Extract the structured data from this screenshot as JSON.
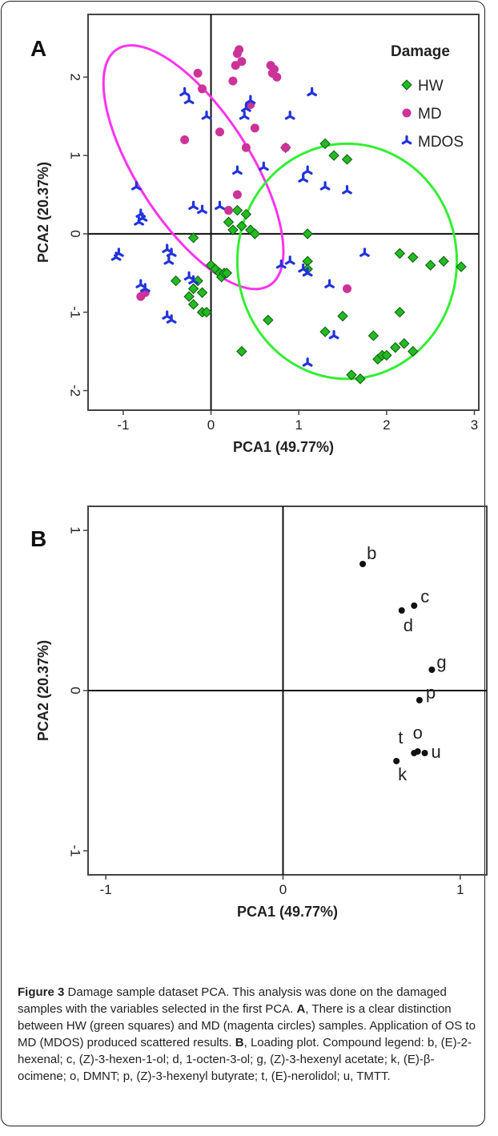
{
  "chart_data": [
    {
      "panel": "A",
      "type": "scatter",
      "xlabel": "PCA1 (49.77%)",
      "ylabel": "PCA2 (20.37%)",
      "xlim": [
        -1.4,
        3.05
      ],
      "ylim": [
        -2.25,
        2.8
      ],
      "xticks": [
        -1,
        0,
        1,
        2,
        3
      ],
      "yticks": [
        -2,
        -1,
        0,
        1,
        2
      ],
      "legend_title": "Damage",
      "legend_position": "top-right",
      "series": [
        {
          "name": "HW",
          "marker": "diamond",
          "color": "#22bb22",
          "x": [
            1.3,
            1.4,
            1.55,
            0.85,
            -0.2,
            0.35,
            0.45,
            0.25,
            0.3,
            0.2,
            0.4,
            0.5,
            1.1,
            1.1,
            1.1,
            -0.4,
            -0.25,
            -0.2,
            -0.1,
            -0.05,
            0.0,
            0.05,
            0.1,
            0.12,
            0.15,
            0.18,
            -0.1,
            -0.15,
            -0.2,
            0.65,
            0.35,
            1.3,
            1.5,
            1.85,
            1.9,
            1.95,
            2.0,
            2.1,
            2.15,
            2.2,
            2.3,
            2.15,
            2.3,
            2.5,
            2.65,
            2.85,
            1.6,
            1.7
          ],
          "y": [
            1.15,
            1.0,
            0.95,
            1.1,
            -0.05,
            0.1,
            0.05,
            0.05,
            0.3,
            0.15,
            0.25,
            0.0,
            0.0,
            -0.35,
            -0.45,
            -0.6,
            -0.8,
            -0.9,
            -1.0,
            -1.0,
            -0.4,
            -0.45,
            -0.5,
            -0.55,
            -0.5,
            -0.5,
            -0.75,
            -0.6,
            -0.7,
            -1.1,
            -1.5,
            -1.25,
            -1.05,
            -1.3,
            -1.6,
            -1.55,
            -1.55,
            -1.45,
            -1.0,
            -1.4,
            -1.5,
            -0.25,
            -0.3,
            -0.4,
            -0.35,
            -0.42,
            -1.8,
            -1.85
          ]
        },
        {
          "name": "MD",
          "marker": "circle",
          "color": "#cc3399",
          "x": [
            0.3,
            0.32,
            0.35,
            0.28,
            0.7,
            0.72,
            0.68,
            0.75,
            0.25,
            0.45,
            0.5,
            -0.1,
            -0.15,
            -0.3,
            0.1,
            0.4,
            0.3,
            0.2,
            -0.75,
            -0.8,
            0.85,
            1.55
          ],
          "y": [
            2.3,
            2.35,
            2.2,
            2.15,
            2.05,
            2.1,
            2.15,
            2.0,
            1.95,
            1.65,
            1.35,
            1.85,
            2.05,
            1.2,
            1.3,
            1.1,
            0.5,
            0.3,
            -0.75,
            -0.8,
            1.1,
            -0.7
          ]
        },
        {
          "name": "MDOS",
          "marker": "triangle",
          "color": "#2233dd",
          "x": [
            -0.3,
            -0.25,
            -0.05,
            0.45,
            0.4,
            0.38,
            1.15,
            0.9,
            0.6,
            0.3,
            1.1,
            1.05,
            1.3,
            1.55,
            -0.85,
            -0.8,
            -0.78,
            -0.82,
            -1.05,
            -1.08,
            -0.5,
            -0.45,
            -0.48,
            -0.2,
            -0.1,
            0.1,
            -0.8,
            -0.75,
            -0.5,
            -0.45,
            -0.25,
            -0.2,
            0.8,
            0.9,
            1.05,
            1.1,
            1.35,
            1.75,
            1.4,
            1.1
          ],
          "y": [
            1.8,
            1.7,
            1.5,
            1.7,
            1.6,
            1.5,
            1.8,
            1.5,
            0.85,
            0.8,
            0.8,
            0.7,
            0.6,
            0.55,
            0.6,
            0.25,
            0.2,
            0.15,
            -0.25,
            -0.3,
            -0.2,
            -0.25,
            -0.35,
            0.35,
            0.3,
            0.35,
            -0.65,
            -0.7,
            -1.05,
            -1.1,
            -0.55,
            -0.6,
            -0.4,
            -0.35,
            -0.45,
            -0.5,
            -0.65,
            -0.25,
            -1.3,
            -1.65
          ]
        }
      ],
      "ellipses": [
        {
          "color": "#ff33ee",
          "cx": -0.2,
          "cy": 0.85,
          "rx": 1.6,
          "ry": 0.72,
          "angle": 57
        },
        {
          "color": "#33ee33",
          "cx": 1.55,
          "cy": -0.35,
          "rx": 1.25,
          "ry": 1.5,
          "angle": 0
        }
      ]
    },
    {
      "panel": "B",
      "type": "scatter",
      "xlabel": "PCA1 (49.77%)",
      "ylabel": "PCA2 (20.37%)",
      "xlim": [
        -1.1,
        1.15
      ],
      "ylim": [
        -1.15,
        1.15
      ],
      "xticks": [
        -1,
        0,
        1
      ],
      "yticks": [
        -1,
        0,
        1
      ],
      "points": [
        {
          "label": "b",
          "x": 0.45,
          "y": 0.79
        },
        {
          "label": "c",
          "x": 0.74,
          "y": 0.53
        },
        {
          "label": "d",
          "x": 0.67,
          "y": 0.5
        },
        {
          "label": "g",
          "x": 0.84,
          "y": 0.13
        },
        {
          "label": "p",
          "x": 0.77,
          "y": -0.06
        },
        {
          "label": "o",
          "x": 0.76,
          "y": -0.38
        },
        {
          "label": "u",
          "x": 0.8,
          "y": -0.39
        },
        {
          "label": "t",
          "x": 0.74,
          "y": -0.39
        },
        {
          "label": "k",
          "x": 0.64,
          "y": -0.44
        }
      ]
    }
  ],
  "panel_labels": {
    "a": "A",
    "b": "B"
  },
  "caption": {
    "figure_label": "Figure 3",
    "title": " Damage sample dataset PCA. This analysis was done on the damaged samples with the variables selected in the first PCA. ",
    "a_label": "A",
    "a_text": ", There is a clear distinction between HW (green squares) and MD (magenta circles) samples. Application of OS to MD (MDOS) produced scattered results. ",
    "b_label": "B",
    "b_text": ", Loading plot. Compound legend: b, (E)-2-hexenal; c, (Z)-3-hexen-1-ol; d, 1-octen-3-ol; g, (Z)-3-hexenyl acetate; k, (E)-β-ocimene; o, DMNT; p, (Z)-3-hexenyl butyrate; t, (E)-nerolidol; u, TMTT."
  }
}
